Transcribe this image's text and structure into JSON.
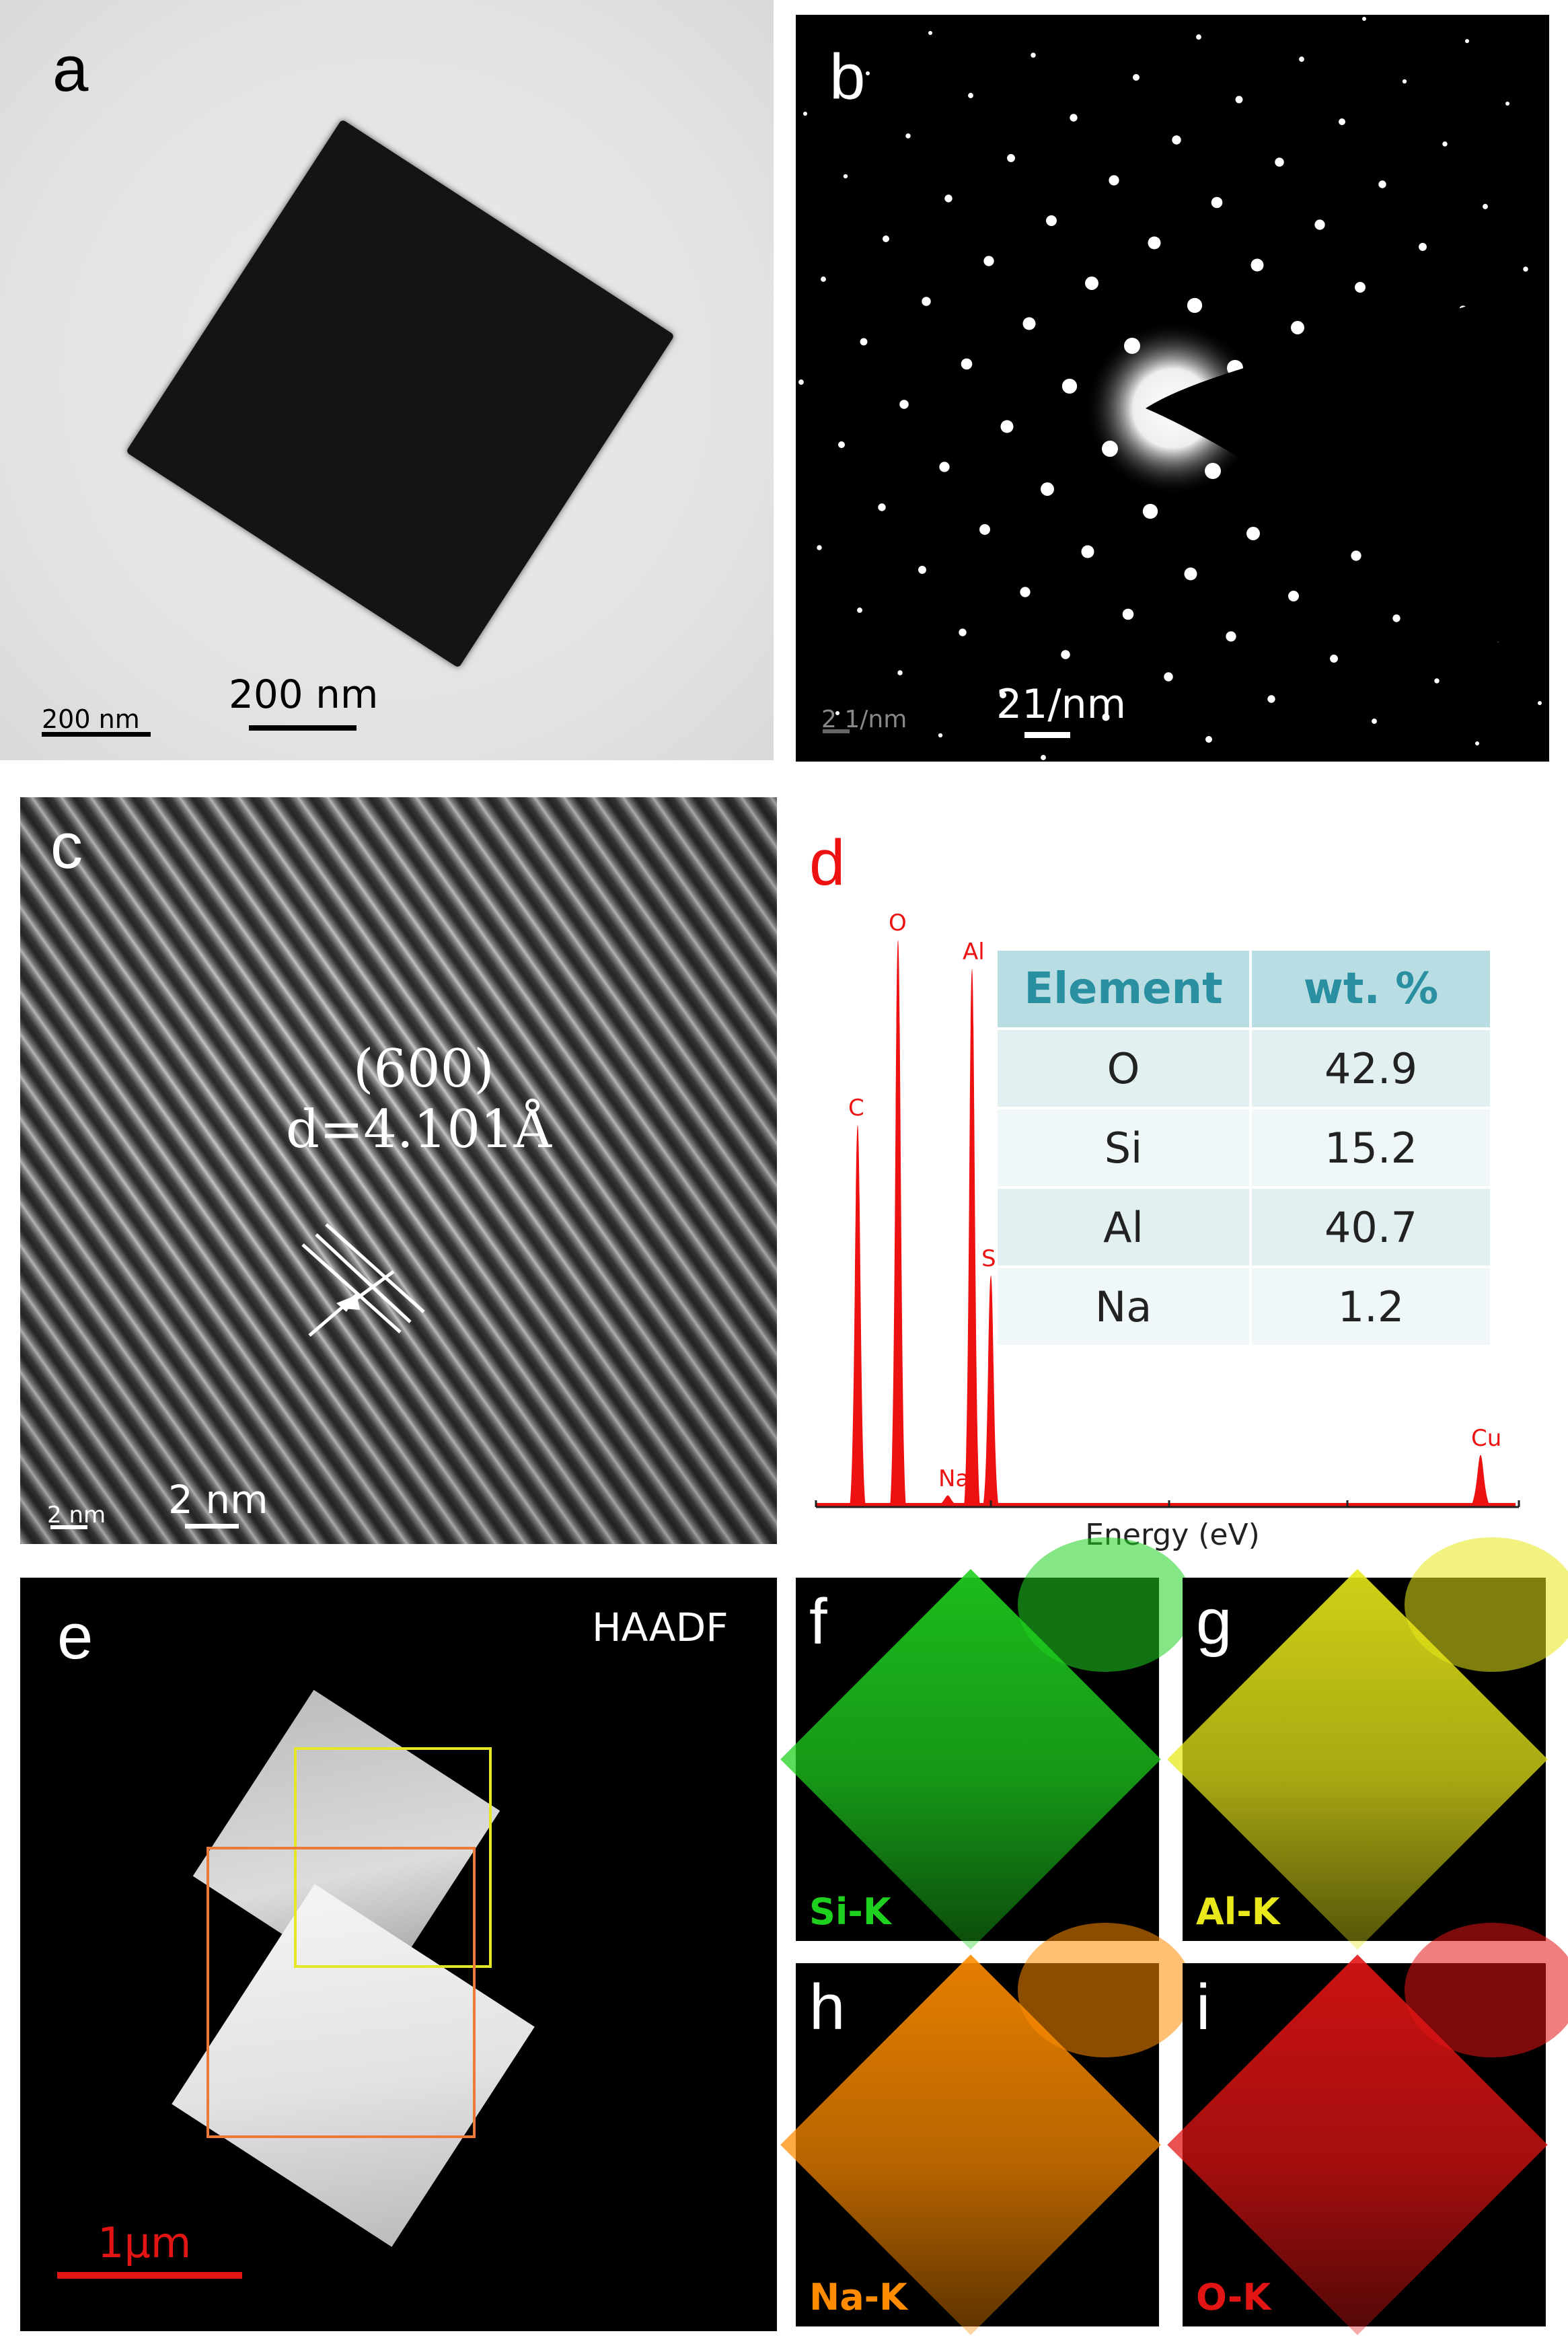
{
  "panels": {
    "a": {
      "label": "a",
      "scalebar_small": "200 nm",
      "scalebar_large": "200 nm"
    },
    "b": {
      "label": "b",
      "scalebar_small": "2 1/nm",
      "scalebar_large": "21/nm"
    },
    "c": {
      "label": "c",
      "plane": "(600)",
      "d_spacing": "d=4.101Å",
      "scalebar_small": "2 nm",
      "scalebar_large": "2 nm"
    },
    "d": {
      "label": "d",
      "xlabel": "Energy (eV)",
      "table": {
        "headers": [
          "Element",
          "wt. %"
        ],
        "rows": [
          [
            "O",
            "42.9"
          ],
          [
            "Si",
            "15.2"
          ],
          [
            "Al",
            "40.7"
          ],
          [
            "Na",
            "1.2"
          ]
        ]
      }
    },
    "e": {
      "label": "e",
      "mode": "HAADF",
      "scalebar": "1μm"
    },
    "f": {
      "label": "f",
      "element": "Si-K",
      "color": "#1fd11f"
    },
    "g": {
      "label": "g",
      "element": "Al-K",
      "color": "#e8e81a"
    },
    "h": {
      "label": "h",
      "element": "Na-K",
      "color": "#ff8c00"
    },
    "i": {
      "label": "i",
      "element": "O-K",
      "color": "#e31414"
    }
  },
  "chart_data": {
    "type": "line",
    "xlabel": "Energy (eV)",
    "ylabel": "",
    "peaks": [
      {
        "element": "C",
        "height": 0.66
      },
      {
        "element": "O",
        "height": 0.98
      },
      {
        "element": "Na",
        "height": 0.02
      },
      {
        "element": "Al",
        "height": 0.93
      },
      {
        "element": "Si",
        "height": 0.4
      },
      {
        "element": "Cu",
        "height": 0.09
      }
    ],
    "color": "#ee1111",
    "grid": false
  }
}
